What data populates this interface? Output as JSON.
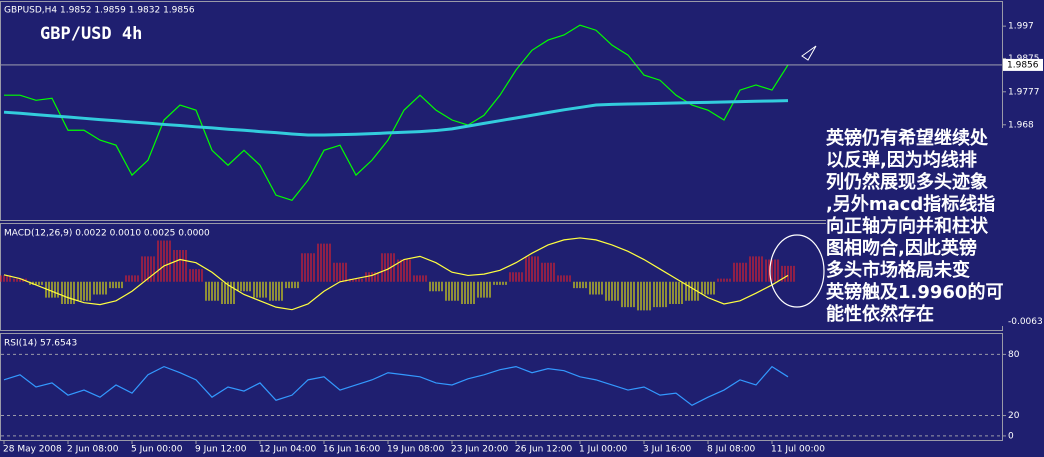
{
  "chart_data": [
    {
      "type": "line",
      "title": "GBP/USD 4h",
      "subtitle": "GBPUSD,H4  1.9852 1.9859 1.9832 1.9856",
      "ylim": [
        1.94,
        2.0041
      ],
      "yticks": [
        1.997,
        1.9875,
        1.9777,
        1.968
      ],
      "last_price": 1.9856,
      "series": [
        {
          "color": "#00ff00",
          "values": [
            1.9767,
            1.9767,
            1.9752,
            1.9758,
            1.9664,
            1.9664,
            1.9635,
            1.962,
            1.9532,
            1.9576,
            1.9694,
            1.9738,
            1.9723,
            1.9605,
            1.9561,
            1.9605,
            1.9561,
            1.9473,
            1.9458,
            1.9517,
            1.9605,
            1.962,
            1.9532,
            1.9576,
            1.9635,
            1.9723,
            1.9767,
            1.9723,
            1.9694,
            1.9679,
            1.9708,
            1.9767,
            1.9841,
            1.9899,
            1.9929,
            1.9944,
            1.9973,
            1.9958,
            1.9914,
            1.9885,
            1.9826,
            1.9811,
            1.9767,
            1.9738,
            1.9723,
            1.9694,
            1.9782,
            1.9797,
            1.9782,
            1.9856
          ]
        },
        {
          "color": "#33ccdd",
          "values": [
            1.9717,
            1.9714,
            1.971,
            1.9706,
            1.9703,
            1.9699,
            1.9695,
            1.9692,
            1.9688,
            1.9685,
            1.9681,
            1.9678,
            1.9674,
            1.9671,
            1.9667,
            1.9664,
            1.966,
            1.9657,
            1.9653,
            1.965,
            1.965,
            1.9651,
            1.9652,
            1.9654,
            1.9656,
            1.9658,
            1.966,
            1.9663,
            1.9668,
            1.9676,
            1.9684,
            1.9692,
            1.97,
            1.9708,
            1.9716,
            1.9724,
            1.9731,
            1.9738,
            1.974,
            1.9741,
            1.9742,
            1.9743,
            1.9744,
            1.9745,
            1.9746,
            1.9747,
            1.9748,
            1.9749,
            1.975,
            1.9751
          ]
        }
      ],
      "annotation": [
        "英镑仍有希望继续处",
        "以反弹,因为均线排",
        "列仍然展现多头迹象",
        ",另外macd指标线指",
        "向正轴方向并和柱状",
        "图相吻合,因此英镑",
        "多头市场格局未变",
        "英镑触及1.9960的可",
        "能性依然存在"
      ]
    },
    {
      "type": "bar",
      "title": "MACD(12,26,9) 0.0022 0.0010 0.0025 0.0000",
      "ylim": [
        -0.0076,
        0.0091
      ],
      "yticks": [
        -0.0063
      ],
      "color": "#ff2020",
      "negative_color": "#ffff00",
      "values": [
        0.001,
        0.0005,
        -0.0005,
        -0.0025,
        -0.0035,
        -0.003,
        -0.002,
        -0.001,
        0.001,
        0.004,
        0.0065,
        0.005,
        0.002,
        -0.003,
        -0.0035,
        -0.0015,
        -0.0025,
        -0.003,
        -0.001,
        0.0045,
        0.006,
        0.003,
        0.0005,
        0.0015,
        0.0045,
        0.0035,
        0.001,
        -0.0015,
        -0.003,
        -0.0035,
        -0.0025,
        -0.0005,
        0.0015,
        0.004,
        0.003,
        0.001,
        -0.001,
        -0.002,
        -0.003,
        -0.004,
        -0.0045,
        -0.004,
        -0.0035,
        -0.003,
        -0.002,
        0.0005,
        0.003,
        0.004,
        0.0035,
        0.0025
      ],
      "series": [
        {
          "color": "#ffff40",
          "values": [
            0.0011,
            0.0005,
            -0.0005,
            -0.0015,
            -0.0025,
            -0.0033,
            -0.0036,
            -0.003,
            -0.0015,
            0.0005,
            0.0025,
            0.0035,
            0.003,
            0.0015,
            -0.0005,
            -0.002,
            -0.003,
            -0.004,
            -0.0044,
            -0.0035,
            -0.0015,
            0.0,
            0.0005,
            0.001,
            0.002,
            0.0035,
            0.004,
            0.003,
            0.0015,
            0.001,
            0.0012,
            0.0018,
            0.003,
            0.0045,
            0.0058,
            0.0066,
            0.0069,
            0.0066,
            0.0058,
            0.0048,
            0.0035,
            0.002,
            0.0005,
            -0.001,
            -0.0025,
            -0.0035,
            -0.003,
            -0.0018,
            -0.0005,
            0.001
          ]
        }
      ]
    },
    {
      "type": "line",
      "title": "RSI(14) 57.6543",
      "ylim": [
        -4,
        100
      ],
      "yticks": [
        0,
        20,
        80
      ],
      "grid": true,
      "categories": [
        "28 May 2008",
        null,
        null,
        null,
        "2 Jun 08:00",
        null,
        null,
        null,
        "5 Jun 00:00",
        null,
        null,
        null,
        "9 Jun 12:00",
        null,
        null,
        null,
        "12 Jun 04:00",
        null,
        null,
        null,
        "16 Jun 16:00",
        null,
        null,
        null,
        "19 Jun 08:00",
        null,
        null,
        null,
        "23 Jun 20:00",
        null,
        null,
        null,
        "26 Jun 12:00",
        null,
        null,
        null,
        "1 Jul 00:00",
        null,
        null,
        null,
        "3 Jul 16:00",
        null,
        null,
        null,
        "8 Jul 08:00",
        null,
        null,
        null,
        "11 Jul 00:00",
        null
      ],
      "series": [
        {
          "color": "#3399ff",
          "values": [
            55,
            60,
            48,
            52,
            40,
            45,
            38,
            50,
            42,
            60,
            68,
            62,
            55,
            38,
            48,
            44,
            52,
            35,
            40,
            55,
            58,
            45,
            50,
            55,
            62,
            60,
            58,
            52,
            50,
            56,
            60,
            65,
            68,
            62,
            66,
            64,
            58,
            55,
            50,
            45,
            48,
            40,
            42,
            30,
            38,
            45,
            55,
            50,
            68,
            58
          ]
        }
      ]
    }
  ]
}
